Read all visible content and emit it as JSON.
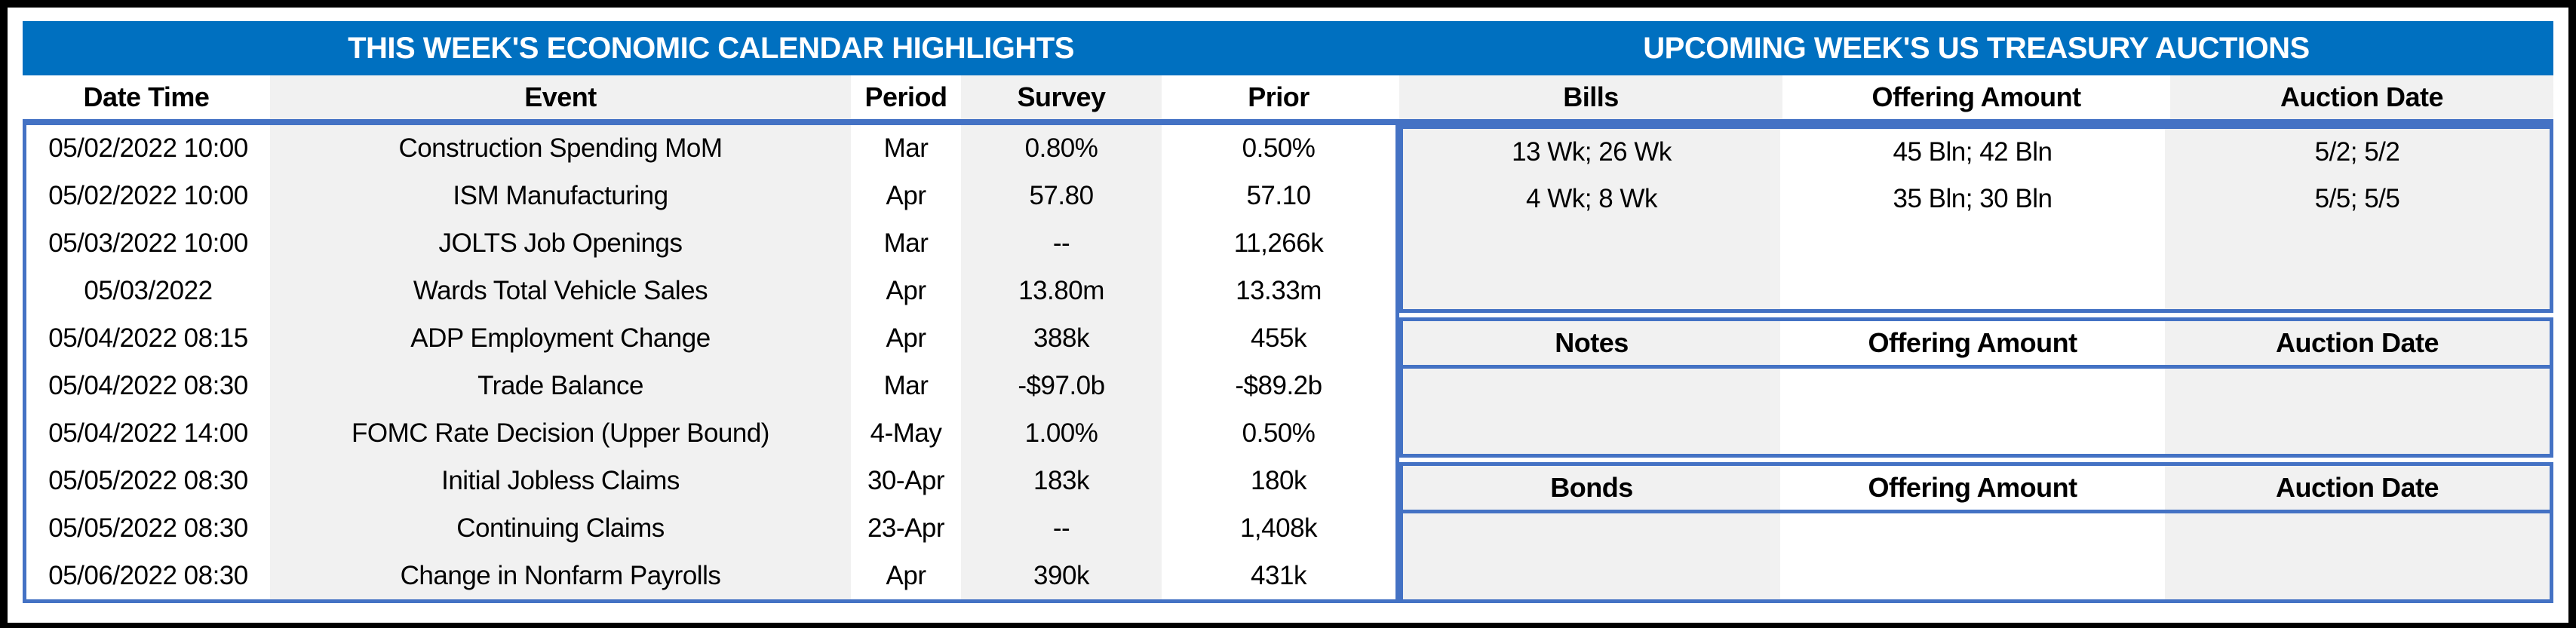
{
  "colors": {
    "banner_blue": "#0070C0",
    "border_blue": "#4472C4",
    "cell_gray": "#F1F1F1",
    "frame_black": "#000000",
    "title_text": "#FFFFFF"
  },
  "left_table": {
    "title": "THIS WEEK'S ECONOMIC CALENDAR HIGHLIGHTS",
    "columns": [
      "Date Time",
      "Event",
      "Period",
      "Survey",
      "Prior"
    ],
    "rows": [
      [
        "05/02/2022 10:00",
        "Construction Spending MoM",
        "Mar",
        "0.80%",
        "0.50%"
      ],
      [
        "05/02/2022 10:00",
        "ISM Manufacturing",
        "Apr",
        "57.80",
        "57.10"
      ],
      [
        "05/03/2022 10:00",
        "JOLTS Job Openings",
        "Mar",
        "--",
        "11,266k"
      ],
      [
        "05/03/2022",
        "Wards Total Vehicle Sales",
        "Apr",
        "13.80m",
        "13.33m"
      ],
      [
        "05/04/2022 08:15",
        "ADP Employment Change",
        "Apr",
        "388k",
        "455k"
      ],
      [
        "05/04/2022 08:30",
        "Trade Balance",
        "Mar",
        "-$97.0b",
        "-$89.2b"
      ],
      [
        "05/04/2022 14:00",
        "FOMC Rate Decision (Upper Bound)",
        "4-May",
        "1.00%",
        "0.50%"
      ],
      [
        "05/05/2022 08:30",
        "Initial Jobless Claims",
        "30-Apr",
        "183k",
        "180k"
      ],
      [
        "05/05/2022 08:30",
        "Continuing Claims",
        "23-Apr",
        "--",
        "1,408k"
      ],
      [
        "05/06/2022 08:30",
        "Change in Nonfarm Payrolls",
        "Apr",
        "390k",
        "431k"
      ]
    ]
  },
  "right_table": {
    "title": "UPCOMING WEEK'S US TREASURY AUCTIONS",
    "sections": [
      {
        "name": "Bills",
        "columns": [
          "Bills",
          "Offering Amount",
          "Auction Date"
        ],
        "rows": [
          [
            "13 Wk; 26 Wk",
            "45 Bln; 42 Bln",
            "5/2; 5/2"
          ],
          [
            "4 Wk; 8 Wk",
            "35 Bln; 30 Bln",
            "5/5; 5/5"
          ]
        ]
      },
      {
        "name": "Notes",
        "columns": [
          "Notes",
          "Offering Amount",
          "Auction Date"
        ],
        "rows": []
      },
      {
        "name": "Bonds",
        "columns": [
          "Bonds",
          "Offering Amount",
          "Auction Date"
        ],
        "rows": []
      }
    ]
  }
}
